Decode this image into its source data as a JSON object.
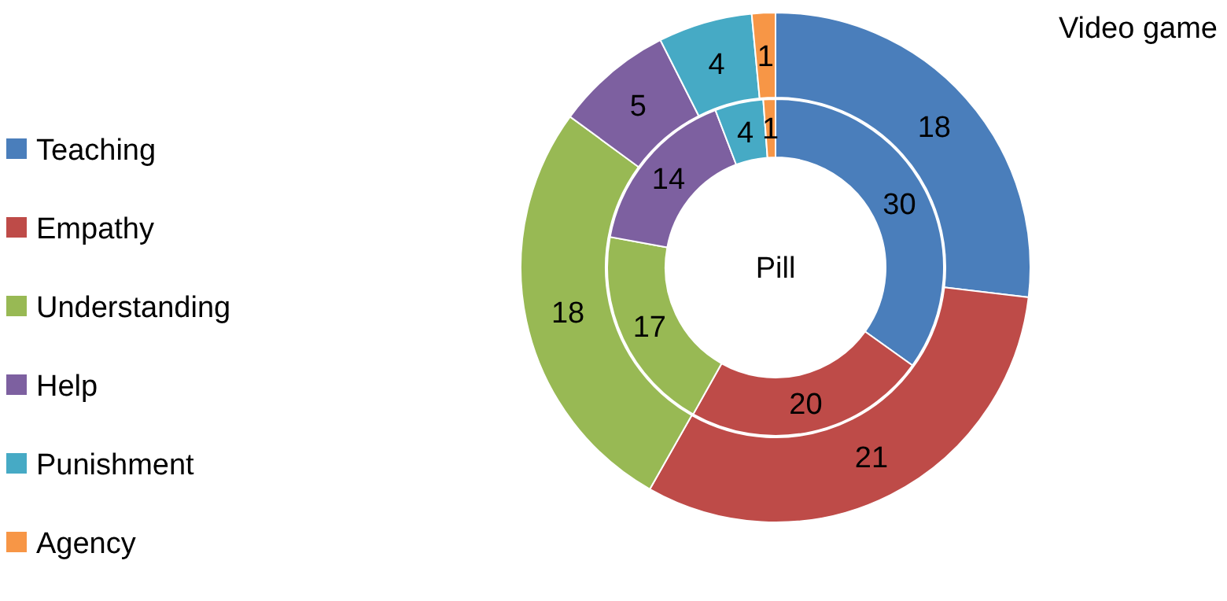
{
  "chart_data": {
    "type": "donut",
    "categories": [
      "Teaching",
      "Empathy",
      "Understanding",
      "Help",
      "Punishment",
      "Agency"
    ],
    "colors": [
      "#4a7ebb",
      "#be4b48",
      "#98b954",
      "#7d60a0",
      "#46aac5",
      "#f79646"
    ],
    "series": [
      {
        "name": "Pill",
        "values": [
          30,
          20,
          17,
          14,
          4,
          1
        ]
      },
      {
        "name": "Video game",
        "values": [
          18,
          21,
          18,
          5,
          4,
          1
        ]
      }
    ],
    "data_labels": true,
    "legend": "left"
  }
}
